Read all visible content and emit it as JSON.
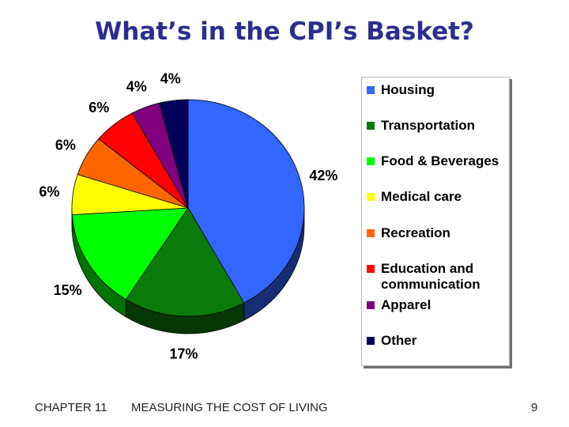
{
  "title": "What’s in the CPI’s Basket?",
  "chart_data": {
    "type": "pie",
    "title": "What’s in the CPI’s Basket?",
    "categories": [
      "Housing",
      "Transportation",
      "Food & Beverages",
      "Medical care",
      "Recreation",
      "Education and communication",
      "Apparel",
      "Other"
    ],
    "values": [
      42,
      17,
      15,
      6,
      6,
      6,
      4,
      4
    ],
    "labels": [
      "42%",
      "17%",
      "15%",
      "6%",
      "6%",
      "6%",
      "4%",
      "4%"
    ],
    "colors": [
      "#3366ff",
      "#0a7a0a",
      "#00ff00",
      "#ffff00",
      "#ff6600",
      "#ff0000",
      "#800080",
      "#00005a"
    ],
    "legend_position": "right",
    "legend": [
      {
        "label": "Housing",
        "color": "#3366ff"
      },
      {
        "label": "Transportation",
        "color": "#0a7a0a"
      },
      {
        "label": "Food & Beverages",
        "color": "#00ff00"
      },
      {
        "label": "Medical care",
        "color": "#ffff00"
      },
      {
        "label": "Recreation",
        "color": "#ff6600"
      },
      {
        "label": "Education and\ncommunication",
        "color": "#ff0000"
      },
      {
        "label": "Apparel",
        "color": "#800080"
      },
      {
        "label": "Other",
        "color": "#00005a"
      }
    ]
  },
  "footer": {
    "chapter": "CHAPTER 11",
    "section": "MEASURING THE COST OF LIVING",
    "page": "9"
  }
}
